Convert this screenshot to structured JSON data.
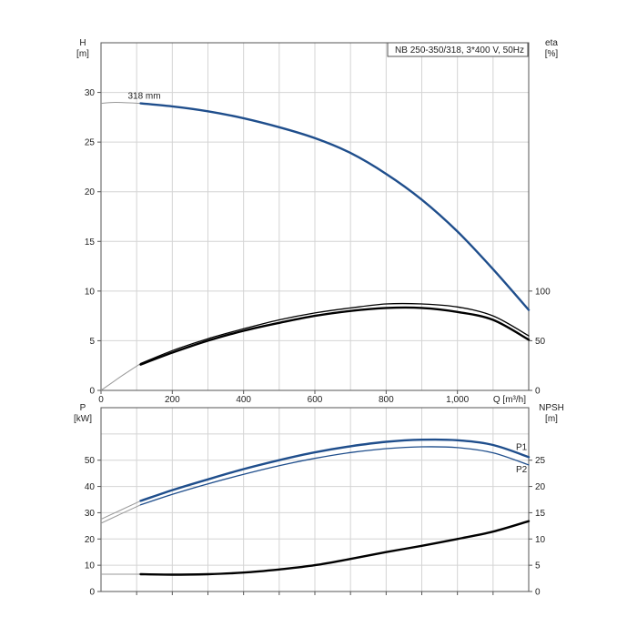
{
  "title_box": "NB 250-350/318, 3*400 V, 50Hz",
  "colors": {
    "blue": "#1f4e8c",
    "light_blue": "#7fa3cc",
    "black": "#000000",
    "gray": "#999999"
  },
  "chart_data": [
    {
      "type": "line",
      "name": "head-efficiency",
      "xlabel": "Q [m³/h]",
      "x_ticks": [
        "0",
        "200",
        "400",
        "600",
        "800",
        "1,000"
      ],
      "x_tick_values": [
        0,
        200,
        400,
        600,
        800,
        1000
      ],
      "xlim": [
        0,
        1200
      ],
      "grid": true,
      "left_axis": {
        "label_top": "H",
        "label_unit": "[m]",
        "ylim": [
          0,
          35
        ],
        "ticks": [
          0,
          5,
          10,
          15,
          20,
          25,
          30
        ]
      },
      "right_axis": {
        "label_top": "eta",
        "label_unit": "[%]",
        "ylim": [
          0,
          350
        ],
        "ticks": [
          0,
          50,
          100
        ]
      },
      "series": [
        {
          "axis": "left",
          "color": "blue",
          "annotation": "318 mm",
          "extension_x": [
            0,
            40,
            111
          ],
          "extension_y": [
            28.9,
            29.0,
            28.9
          ],
          "x": [
            111,
            200,
            300,
            400,
            500,
            600,
            700,
            800,
            900,
            1000,
            1100,
            1200
          ],
          "y": [
            28.9,
            28.6,
            28.1,
            27.4,
            26.5,
            25.4,
            23.9,
            21.8,
            19.2,
            16.0,
            12.2,
            8.1
          ]
        },
        {
          "axis": "right",
          "color": "black",
          "weight": "thin",
          "extension_x": [
            0,
            60,
            111
          ],
          "extension_y": [
            0,
            15,
            27
          ],
          "x": [
            111,
            200,
            300,
            400,
            500,
            600,
            700,
            800,
            900,
            1000,
            1100,
            1200
          ],
          "y": [
            27,
            40,
            52,
            62,
            71,
            78,
            83,
            87,
            87,
            84,
            75,
            55
          ]
        },
        {
          "axis": "right",
          "color": "black",
          "weight": "thick",
          "x": [
            111,
            200,
            300,
            400,
            500,
            600,
            700,
            800,
            900,
            1000,
            1100,
            1200
          ],
          "y": [
            26,
            38,
            50,
            60,
            68,
            75,
            80,
            83,
            83,
            79,
            71,
            51
          ]
        }
      ]
    },
    {
      "type": "line",
      "name": "power-npsh",
      "xlim": [
        0,
        1200
      ],
      "grid": true,
      "left_axis": {
        "label_top": "P",
        "label_unit": "[kW]",
        "ylim": [
          0,
          70
        ],
        "ticks": [
          0,
          10,
          20,
          30,
          40,
          50
        ]
      },
      "right_axis": {
        "label_top": "NPSH",
        "label_unit": "[m]",
        "ylim": [
          0,
          35
        ],
        "ticks": [
          0,
          5,
          10,
          15,
          20,
          25
        ]
      },
      "series": [
        {
          "axis": "left",
          "name": "P1",
          "color": "blue",
          "weight": "thick",
          "extension_x": [
            0,
            111
          ],
          "extension_y": [
            27.5,
            34.5
          ],
          "x": [
            111,
            200,
            300,
            400,
            500,
            600,
            700,
            800,
            900,
            1000,
            1100,
            1200
          ],
          "y": [
            34.5,
            38.6,
            42.7,
            46.6,
            50.0,
            53.0,
            55.3,
            57.0,
            57.8,
            57.6,
            55.8,
            51.2
          ]
        },
        {
          "axis": "left",
          "name": "P2",
          "color": "blue",
          "weight": "thin",
          "extension_x": [
            0,
            111
          ],
          "extension_y": [
            26.0,
            33.0
          ],
          "x": [
            111,
            200,
            300,
            400,
            500,
            600,
            700,
            800,
            900,
            1000,
            1100,
            1200
          ],
          "y": [
            33.0,
            37.0,
            41.0,
            44.6,
            47.9,
            50.7,
            52.9,
            54.4,
            55.1,
            54.8,
            52.8,
            48.2
          ]
        },
        {
          "axis": "right",
          "color": "black",
          "weight": "thick",
          "extension_x": [
            0,
            111
          ],
          "extension_y": [
            3.3,
            3.3
          ],
          "x": [
            111,
            200,
            300,
            400,
            500,
            600,
            700,
            800,
            900,
            1000,
            1100,
            1200
          ],
          "y": [
            3.3,
            3.2,
            3.3,
            3.6,
            4.2,
            5.0,
            6.2,
            7.5,
            8.7,
            10.0,
            11.4,
            13.4
          ]
        }
      ]
    }
  ]
}
